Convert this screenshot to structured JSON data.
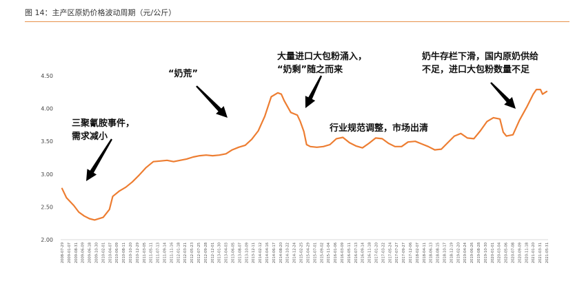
{
  "figure": {
    "title": "图 14：主产区原奶价格波动周期（元/公斤）"
  },
  "chart_data": {
    "type": "line",
    "title": "图 14：主产区原奶价格波动周期（元/公斤）",
    "xlabel": "",
    "ylabel": "",
    "ylim": [
      2.0,
      4.5
    ],
    "yticks": [
      "2.00",
      "2.50",
      "3.00",
      "3.50",
      "4.00",
      "4.50"
    ],
    "grid": false,
    "legend": "none",
    "line_color": "#ed7d31",
    "xlim": [
      "2008-07-29",
      "2021-05-31"
    ],
    "xticks": [
      "2008-07-29",
      "2009-01-07",
      "2009-08-31",
      "2009-06-09",
      "2009-06-18",
      "2009-10-30",
      "2010-02-01",
      "2010-04-07",
      "2010-06-09",
      "2010-08-11",
      "2010-10-20",
      "2010-12-29",
      "2011-03-05",
      "2011-05-11",
      "2011-07-13",
      "2011-09-14",
      "2011-11-16",
      "2012-01-18",
      "2012-03-21",
      "2012-05-23",
      "2012-07-25",
      "2012-09-28",
      "2012-12-01",
      "2013-01-30",
      "2013-04-03",
      "2013-06-05",
      "2013-08-07",
      "2013-10-09",
      "2013-12-11",
      "2014-02-12",
      "2014-04-16",
      "2014-06-17",
      "2014-08-20",
      "2014-10-22",
      "2014-12-24",
      "2015-02-25",
      "2015-04-29",
      "2015-07-01",
      "2015-09-02",
      "2015-11-04",
      "2016-01-06",
      "2016-03-09",
      "2016-05-11",
      "2016-07-13",
      "2016-09-14",
      "2016-11-18",
      "2017-01-20",
      "2017-03-22",
      "2017-05-24",
      "2017-07-27",
      "2017-09-27",
      "2017-12-06",
      "2018-02-07",
      "2018-04-11",
      "2018-06-13",
      "2018-08-15",
      "2018-10-17",
      "2018-12-19",
      "2019-02-20",
      "2019-04-24",
      "2019-06-26",
      "2019-08-28",
      "2019-10-30",
      "2020-01-01",
      "2020-03-04",
      "2020-05-06",
      "2020-07-08",
      "2020-09-09",
      "2020-11-18",
      "2021-01-20",
      "2021-03-31",
      "2021-05-31"
    ],
    "series": [
      {
        "values": [
          [
            "2008-07-29",
            2.78
          ],
          [
            "2008-09-10",
            2.64
          ],
          [
            "2008-11-20",
            2.52
          ],
          [
            "2009-01-07",
            2.42
          ],
          [
            "2009-03-01",
            2.36
          ],
          [
            "2009-04-20",
            2.32
          ],
          [
            "2009-06-09",
            2.3
          ],
          [
            "2009-08-31",
            2.34
          ],
          [
            "2009-10-30",
            2.46
          ],
          [
            "2009-12-01",
            2.66
          ],
          [
            "2010-02-01",
            2.74
          ],
          [
            "2010-04-07",
            2.8
          ],
          [
            "2010-06-09",
            2.88
          ],
          [
            "2010-08-11",
            2.98
          ],
          [
            "2010-10-20",
            3.1
          ],
          [
            "2010-12-29",
            3.19
          ],
          [
            "2011-03-05",
            3.2
          ],
          [
            "2011-05-11",
            3.21
          ],
          [
            "2011-07-13",
            3.19
          ],
          [
            "2011-09-14",
            3.21
          ],
          [
            "2011-11-16",
            3.23
          ],
          [
            "2012-01-18",
            3.26
          ],
          [
            "2012-03-21",
            3.28
          ],
          [
            "2012-05-23",
            3.29
          ],
          [
            "2012-07-25",
            3.28
          ],
          [
            "2012-09-28",
            3.29
          ],
          [
            "2012-12-01",
            3.31
          ],
          [
            "2013-01-30",
            3.37
          ],
          [
            "2013-04-03",
            3.41
          ],
          [
            "2013-06-05",
            3.44
          ],
          [
            "2013-08-07",
            3.53
          ],
          [
            "2013-10-09",
            3.66
          ],
          [
            "2013-12-11",
            3.88
          ],
          [
            "2014-02-12",
            4.18
          ],
          [
            "2014-04-16",
            4.24
          ],
          [
            "2014-05-20",
            4.22
          ],
          [
            "2014-06-17",
            4.12
          ],
          [
            "2014-08-20",
            3.94
          ],
          [
            "2014-10-22",
            3.9
          ],
          [
            "2014-11-20",
            3.8
          ],
          [
            "2014-12-24",
            3.65
          ],
          [
            "2015-01-20",
            3.45
          ],
          [
            "2015-02-25",
            3.42
          ],
          [
            "2015-04-29",
            3.41
          ],
          [
            "2015-07-01",
            3.42
          ],
          [
            "2015-09-02",
            3.45
          ],
          [
            "2015-11-04",
            3.54
          ],
          [
            "2016-01-06",
            3.56
          ],
          [
            "2016-03-09",
            3.48
          ],
          [
            "2016-05-11",
            3.43
          ],
          [
            "2016-07-13",
            3.4
          ],
          [
            "2016-09-14",
            3.47
          ],
          [
            "2016-11-18",
            3.55
          ],
          [
            "2017-01-20",
            3.54
          ],
          [
            "2017-03-22",
            3.47
          ],
          [
            "2017-05-24",
            3.42
          ],
          [
            "2017-07-27",
            3.42
          ],
          [
            "2017-09-27",
            3.49
          ],
          [
            "2017-12-06",
            3.5
          ],
          [
            "2018-02-07",
            3.46
          ],
          [
            "2018-04-11",
            3.42
          ],
          [
            "2018-06-13",
            3.37
          ],
          [
            "2018-08-15",
            3.38
          ],
          [
            "2018-10-17",
            3.48
          ],
          [
            "2018-12-19",
            3.58
          ],
          [
            "2019-02-20",
            3.62
          ],
          [
            "2019-04-24",
            3.55
          ],
          [
            "2019-06-26",
            3.54
          ],
          [
            "2019-08-28",
            3.66
          ],
          [
            "2019-10-30",
            3.8
          ],
          [
            "2020-01-01",
            3.86
          ],
          [
            "2020-03-04",
            3.84
          ],
          [
            "2020-04-05",
            3.64
          ],
          [
            "2020-05-06",
            3.58
          ],
          [
            "2020-07-08",
            3.6
          ],
          [
            "2020-09-09",
            3.82
          ],
          [
            "2020-11-18",
            4.02
          ],
          [
            "2021-01-20",
            4.22
          ],
          [
            "2021-02-20",
            4.29
          ],
          [
            "2021-03-31",
            4.29
          ],
          [
            "2021-04-20",
            4.22
          ],
          [
            "2021-05-31",
            4.26
          ]
        ]
      }
    ],
    "annotations": [
      {
        "lines": [
          "三聚氰胺事件，",
          "需求减小"
        ]
      },
      {
        "lines": [
          "“奶荒”"
        ]
      },
      {
        "lines": [
          "大量进口大包粉涌入，",
          "“奶剩”随之而来"
        ]
      },
      {
        "lines": [
          "行业规范调整，市场出清"
        ]
      },
      {
        "lines": [
          "奶牛存栏下滑，国内原奶供给",
          "不足，进口大包粉数量不足"
        ]
      }
    ]
  }
}
